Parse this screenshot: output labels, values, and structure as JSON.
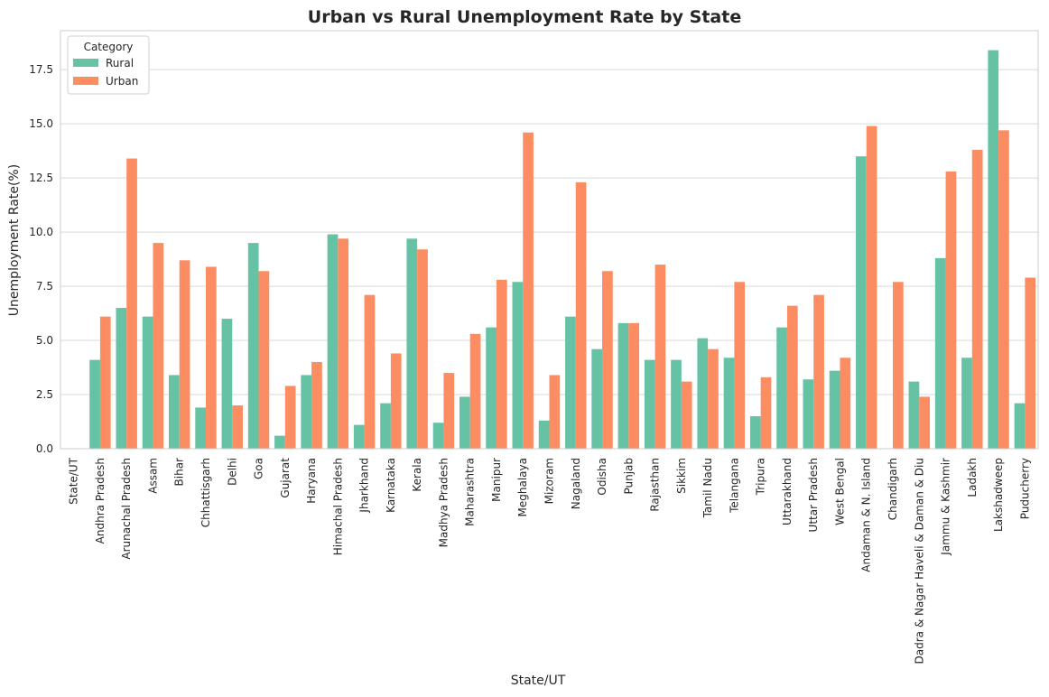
{
  "chart_data": {
    "type": "bar",
    "title": "Urban vs Rural Unemployment Rate by State",
    "xlabel": "State/UT",
    "ylabel": "Unemployment Rate(%)",
    "ylim": [
      0,
      19.3
    ],
    "yticks": [
      "0.0",
      "2.5",
      "5.0",
      "7.5",
      "10.0",
      "12.5",
      "15.0",
      "17.5"
    ],
    "grid": "horizontal",
    "legend": {
      "title": "Category",
      "placement": "top-left"
    },
    "categories": [
      "State/UT",
      "Andhra Pradesh",
      "Arunachal Pradesh",
      "Assam",
      "Bihar",
      "Chhattisgarh",
      "Delhi",
      "Goa",
      "Gujarat",
      "Haryana",
      "Himachal Pradesh",
      "Jharkhand",
      "Karnataka",
      "Kerala",
      "Madhya Pradesh",
      "Maharashtra",
      "Manipur",
      "Meghalaya",
      "Mizoram",
      "Nagaland",
      "Odisha",
      "Punjab",
      "Rajasthan",
      "Sikkim",
      "Tamil Nadu",
      "Telangana",
      "Tripura",
      "Uttarakhand",
      "Uttar Pradesh",
      "West Bengal",
      "Andaman & N. Island",
      "Chandigarh",
      "Dadra & Nagar Haveli & Daman & Diu",
      "Jammu & Kashmir",
      "Ladakh",
      "Lakshadweep",
      "Puducherry"
    ],
    "series": [
      {
        "name": "Rural",
        "color": "#66c2a5",
        "values": [
          null,
          4.1,
          6.5,
          6.1,
          3.4,
          1.9,
          6.0,
          9.5,
          0.6,
          3.4,
          9.9,
          1.1,
          2.1,
          9.7,
          1.2,
          2.4,
          5.6,
          7.7,
          1.3,
          6.1,
          4.6,
          5.8,
          4.1,
          4.1,
          5.1,
          4.2,
          1.5,
          5.6,
          3.2,
          3.6,
          13.5,
          null,
          3.1,
          8.8,
          4.2,
          18.4,
          2.1
        ]
      },
      {
        "name": "Urban",
        "color": "#fc8d62",
        "values": [
          null,
          6.1,
          13.4,
          9.5,
          8.7,
          8.4,
          2.0,
          8.2,
          2.9,
          4.0,
          9.7,
          7.1,
          4.4,
          9.2,
          3.5,
          5.3,
          7.8,
          14.6,
          3.4,
          12.3,
          8.2,
          5.8,
          8.5,
          3.1,
          4.6,
          7.7,
          3.3,
          6.6,
          7.1,
          4.2,
          14.9,
          7.7,
          2.4,
          12.8,
          13.8,
          14.7,
          7.9
        ]
      }
    ]
  }
}
